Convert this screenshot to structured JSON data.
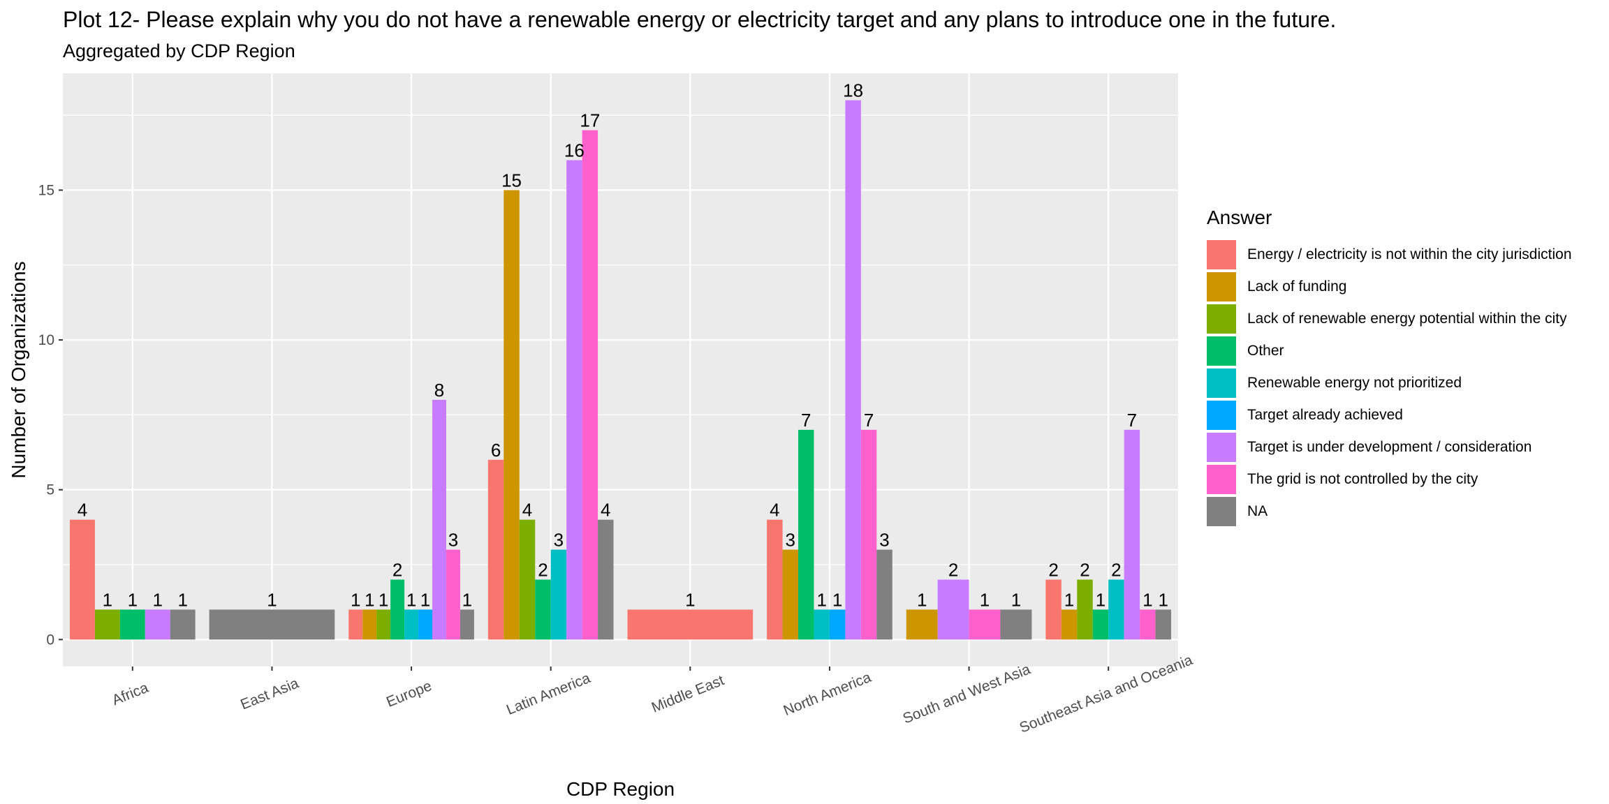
{
  "title": "Plot 12- Please explain why you do not have a renewable energy or electricity target and any plans to introduce one in the future.",
  "subtitle": "Aggregated by CDP Region",
  "legend_title": "Answer",
  "chart_data": {
    "type": "bar",
    "xlabel": "CDP Region",
    "ylabel": "Number of Organizations",
    "ylim": [
      -0.9,
      18.9
    ],
    "yticks": [
      0,
      5,
      10,
      15
    ],
    "grid": true,
    "legend_position": "right",
    "categories": [
      "Africa",
      "East Asia",
      "Europe",
      "Latin America",
      "Middle East",
      "North America",
      "South and West Asia",
      "Southeast Asia and Oceania"
    ],
    "series": [
      {
        "name": "Energy / electricity is not within the city jurisdiction",
        "color": "#F8766D",
        "values": [
          4,
          null,
          1,
          6,
          1,
          4,
          null,
          2
        ]
      },
      {
        "name": "Lack of funding",
        "color": "#CD9600",
        "values": [
          null,
          null,
          1,
          15,
          null,
          3,
          1,
          1
        ]
      },
      {
        "name": "Lack of renewable energy potential within the city",
        "color": "#7CAE00",
        "values": [
          1,
          null,
          1,
          4,
          null,
          null,
          null,
          2
        ]
      },
      {
        "name": "Other",
        "color": "#00BE67",
        "values": [
          1,
          null,
          2,
          2,
          null,
          7,
          null,
          1
        ]
      },
      {
        "name": "Renewable energy not prioritized",
        "color": "#00BFC4",
        "values": [
          null,
          null,
          1,
          3,
          null,
          1,
          null,
          2
        ]
      },
      {
        "name": "Target already achieved",
        "color": "#00A9FF",
        "values": [
          null,
          null,
          1,
          null,
          null,
          1,
          null,
          null
        ]
      },
      {
        "name": "Target is under development / consideration",
        "color": "#C77CFF",
        "values": [
          1,
          null,
          8,
          16,
          null,
          18,
          2,
          7
        ]
      },
      {
        "name": "The grid is not controlled by the city",
        "color": "#FF61CC",
        "values": [
          null,
          null,
          3,
          17,
          null,
          7,
          1,
          1
        ]
      },
      {
        "name": "NA",
        "color": "#808080",
        "values": [
          1,
          1,
          1,
          4,
          null,
          3,
          1,
          1
        ]
      }
    ]
  }
}
